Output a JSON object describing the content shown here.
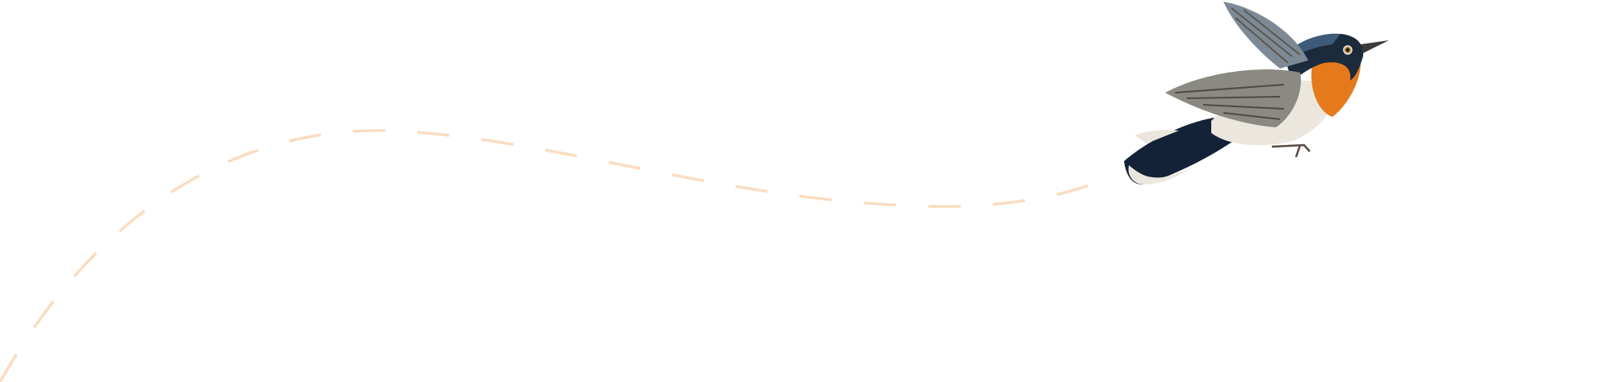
{
  "scene": {
    "background": "#ffffff",
    "flight_path": {
      "style": "dashed",
      "color": "#fbdcc0"
    },
    "bird": {
      "icon": "flycatcher-bird-illustration",
      "colors": {
        "head": "#1c2b3c",
        "throat": "#e47a1c",
        "wing": "#8a8a82",
        "belly": "#ece7de",
        "tail": "#142238"
      }
    }
  }
}
